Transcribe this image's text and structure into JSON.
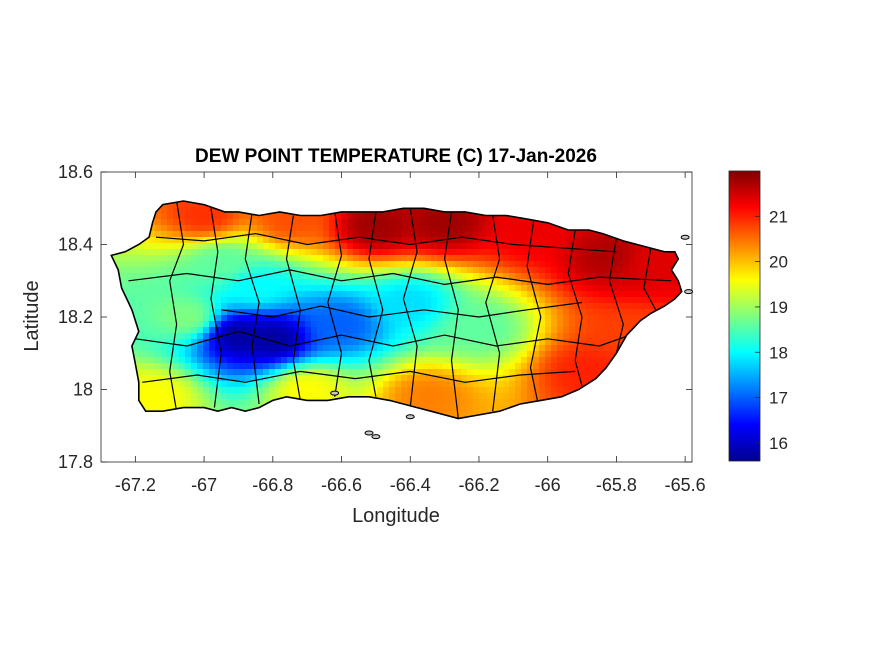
{
  "chart_data": {
    "type": "heatmap",
    "title": "DEW POINT TEMPERATURE (C) 17-Jan-2026",
    "xlabel": "Longitude",
    "ylabel": "Latitude",
    "xlim": [
      -67.3,
      -65.58
    ],
    "ylim": [
      17.8,
      18.6
    ],
    "xticks": [
      -67.2,
      -67,
      -66.8,
      -66.6,
      -66.4,
      -66.2,
      -66,
      -65.8,
      -65.6
    ],
    "xtick_labels": [
      "-67.2",
      "-67",
      "-66.8",
      "-66.6",
      "-66.4",
      "-66.2",
      "-66",
      "-65.8",
      "-65.6"
    ],
    "yticks": [
      17.8,
      18,
      18.2,
      18.4,
      18.6
    ],
    "ytick_labels": [
      "17.8",
      "18",
      "18.2",
      "18.4",
      "18.6"
    ],
    "colorbar": {
      "range": [
        15.6,
        22.0
      ],
      "ticks": [
        16,
        17,
        18,
        19,
        20,
        21
      ],
      "tick_labels": [
        "16",
        "17",
        "18",
        "19",
        "20",
        "21"
      ],
      "colormap": "jet"
    },
    "grid": false,
    "field_hotspots": [
      {
        "lon": -66.5,
        "lat": 18.45,
        "value": 21.8
      },
      {
        "lon": -66.3,
        "lat": 18.46,
        "value": 21.8
      },
      {
        "lon": -66.05,
        "lat": 18.44,
        "value": 21.3
      },
      {
        "lon": -65.82,
        "lat": 18.37,
        "value": 21.7
      },
      {
        "lon": -65.7,
        "lat": 18.35,
        "value": 21.4
      },
      {
        "lon": -67.0,
        "lat": 18.48,
        "value": 20.9
      },
      {
        "lon": -66.75,
        "lat": 18.47,
        "value": 20.7
      },
      {
        "lon": -66.9,
        "lat": 18.15,
        "value": 15.8
      },
      {
        "lon": -66.8,
        "lat": 18.14,
        "value": 15.8
      },
      {
        "lon": -66.6,
        "lat": 18.18,
        "value": 17.0
      },
      {
        "lon": -66.85,
        "lat": 18.28,
        "value": 18.0
      },
      {
        "lon": -66.95,
        "lat": 18.35,
        "value": 18.6
      },
      {
        "lon": -66.4,
        "lat": 18.24,
        "value": 17.8
      },
      {
        "lon": -66.2,
        "lat": 18.17,
        "value": 18.6
      },
      {
        "lon": -67.05,
        "lat": 18.2,
        "value": 18.8
      },
      {
        "lon": -67.15,
        "lat": 17.98,
        "value": 19.6
      },
      {
        "lon": -66.7,
        "lat": 18.0,
        "value": 19.6
      },
      {
        "lon": -66.35,
        "lat": 17.98,
        "value": 20.4
      },
      {
        "lon": -65.88,
        "lat": 18.05,
        "value": 21.0
      },
      {
        "lon": -65.75,
        "lat": 18.15,
        "value": 20.8
      }
    ]
  }
}
